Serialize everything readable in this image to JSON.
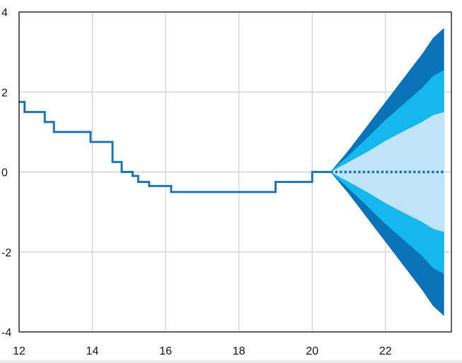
{
  "chart_data": {
    "type": "line",
    "title": "",
    "xlabel": "",
    "ylabel": "",
    "xlim": [
      12,
      23.8
    ],
    "ylim": [
      -4,
      4
    ],
    "x_ticks": [
      12,
      14,
      16,
      18,
      20,
      22
    ],
    "y_ticks": [
      4,
      2,
      0,
      -2,
      -4
    ],
    "x_tick_labels": [
      "12",
      "14",
      "16",
      "18",
      "20",
      "22"
    ],
    "y_tick_labels": [
      "4",
      "2",
      "0",
      "-2",
      "-4"
    ],
    "grid": true,
    "legend": "none",
    "colors": {
      "history_line": "#1f77b8",
      "projection_line": "#1f77b8",
      "band_outer": "#0a72b8",
      "band_middle": "#14b8ec",
      "band_inner": "#bfe4f7",
      "grid": "#c8c8c8",
      "axis": "#000000"
    },
    "history": {
      "x": [
        12.0,
        12.15,
        12.15,
        12.7,
        12.7,
        12.95,
        12.95,
        13.95,
        13.95,
        14.55,
        14.55,
        14.8,
        14.8,
        15.1,
        15.1,
        15.25,
        15.25,
        15.55,
        15.55,
        16.15,
        16.15,
        18.75,
        18.75,
        19.0,
        19.0,
        20.0,
        20.0,
        20.5
      ],
      "y": [
        1.75,
        1.75,
        1.5,
        1.5,
        1.25,
        1.25,
        1.0,
        1.0,
        0.75,
        0.75,
        0.25,
        0.25,
        0.0,
        0.0,
        -0.1,
        -0.1,
        -0.25,
        -0.25,
        -0.35,
        -0.35,
        -0.5,
        -0.5,
        -0.5,
        -0.5,
        -0.25,
        -0.25,
        0.0,
        0.0
      ]
    },
    "projection": {
      "x": [
        20.5,
        23.6
      ],
      "y": [
        0.0,
        0.0
      ]
    },
    "fan_bands": {
      "x": [
        20.5,
        21.0,
        21.5,
        22.0,
        22.5,
        23.0,
        23.3,
        23.6
      ],
      "outer_upper": [
        0.0,
        0.55,
        1.15,
        1.75,
        2.35,
        2.95,
        3.35,
        3.6
      ],
      "middle_upper": [
        0.0,
        0.42,
        0.85,
        1.3,
        1.7,
        2.1,
        2.4,
        2.55
      ],
      "inner_upper": [
        0.0,
        0.25,
        0.5,
        0.78,
        1.02,
        1.25,
        1.42,
        1.5
      ],
      "inner_lower": [
        0.0,
        -0.25,
        -0.5,
        -0.78,
        -1.02,
        -1.25,
        -1.42,
        -1.5
      ],
      "middle_lower": [
        0.0,
        -0.42,
        -0.85,
        -1.3,
        -1.7,
        -2.1,
        -2.4,
        -2.55
      ],
      "outer_lower": [
        0.0,
        -0.55,
        -1.15,
        -1.75,
        -2.35,
        -2.95,
        -3.35,
        -3.6
      ]
    }
  }
}
